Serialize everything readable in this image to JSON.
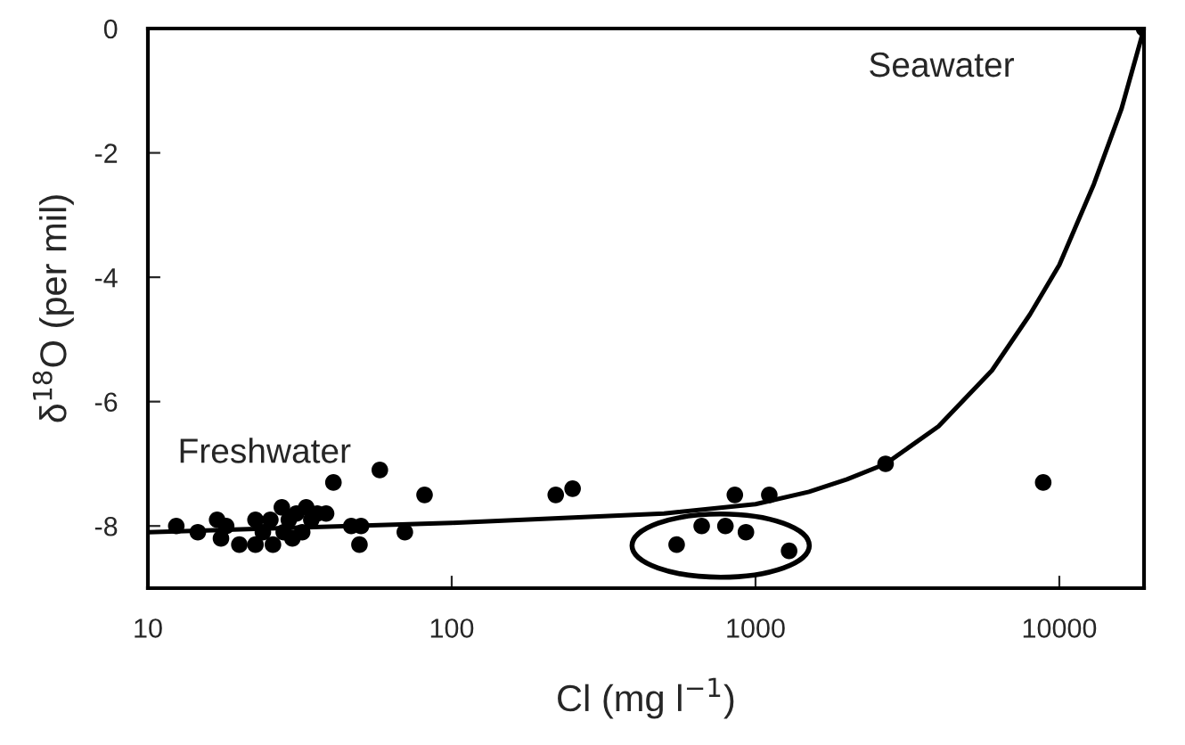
{
  "chart_data": {
    "type": "scatter",
    "xlabel": "Cl (mg l$^{−1}$)",
    "ylabel": "δ$^{18}$O (per mil)",
    "log": "x",
    "xlim": [
      10,
      19000
    ],
    "xticks": [
      10,
      100,
      1000,
      10000
    ],
    "ylim": [
      -9,
      0
    ],
    "yticks": [
      0,
      -2,
      -4,
      -6,
      -8
    ],
    "grid": false,
    "legend": false,
    "marker": "circle",
    "annotations": [
      "Seawater",
      "Freshwater"
    ],
    "series": [
      {
        "color": "#000000",
        "x": [
          12.4,
          14.6,
          16.9,
          17.4,
          18.1,
          20.0,
          22.6,
          22.6,
          23.9,
          25.3,
          25.8,
          27.6,
          28.0,
          29.1,
          29.9,
          30.8,
          32.2,
          33.2,
          34.5,
          36.1,
          38.6,
          40.8,
          46.7,
          49.7,
          50.3,
          58.0,
          70.1,
          81.4,
          220,
          250,
          550,
          665,
          796,
          930,
          855,
          1110,
          1290,
          2680,
          8850,
          19000
        ],
        "values": [
          -8.0,
          -8.1,
          -7.9,
          -8.2,
          -8.0,
          -8.3,
          -7.9,
          -8.3,
          -8.1,
          -7.9,
          -8.3,
          -7.7,
          -8.1,
          -7.9,
          -8.2,
          -7.8,
          -8.1,
          -7.7,
          -7.9,
          -7.8,
          -7.8,
          -7.3,
          -8.0,
          -8.3,
          -8.0,
          -7.1,
          -8.1,
          -7.5,
          -7.5,
          -7.4,
          -8.3,
          -8.0,
          -8.0,
          -8.1,
          -7.5,
          -7.5,
          -8.4,
          -7.0,
          -7.3,
          0
        ]
      },
      {
        "type": "line",
        "color": "#000000",
        "marker": "none",
        "line_style": "solid",
        "x": [
          10,
          100,
          500,
          1000,
          1500,
          2000,
          2680,
          4000,
          6000,
          8000,
          10000,
          13000,
          16000,
          19000
        ],
        "values": [
          -8.1,
          -7.95,
          -7.8,
          -7.65,
          -7.45,
          -7.25,
          -7.0,
          -6.4,
          -5.5,
          -4.6,
          -3.8,
          -2.5,
          -1.3,
          0
        ]
      }
    ]
  }
}
